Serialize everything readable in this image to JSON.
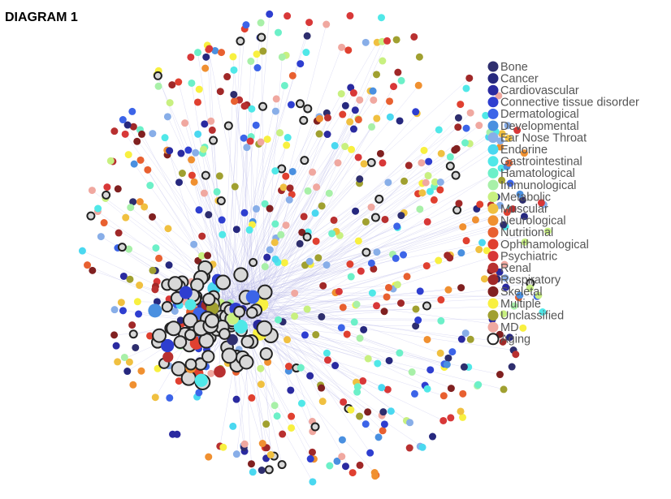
{
  "title": "DIAGRAM 1",
  "legend": [
    {
      "label": "Bone",
      "color": "#2e2e6e"
    },
    {
      "label": "Cancer",
      "color": "#26287e"
    },
    {
      "label": "Cardiovascular",
      "color": "#2a2aa0"
    },
    {
      "label": "Connective tissue disorder",
      "color": "#2e3ed0"
    },
    {
      "label": "Dermatological",
      "color": "#3c64e8"
    },
    {
      "label": "Developmental",
      "color": "#4a90e0"
    },
    {
      "label": "Ear Nose Throat",
      "color": "#88aee8"
    },
    {
      "label": "Endorine",
      "color": "#4ad8f0"
    },
    {
      "label": "Gastrointestinal",
      "color": "#50e8e8"
    },
    {
      "label": "Hamatological",
      "color": "#6cf0c8"
    },
    {
      "label": "Immunological",
      "color": "#a8f0a8"
    },
    {
      "label": "Metabolic",
      "color": "#c8f080"
    },
    {
      "label": "Muscular",
      "color": "#f0c040"
    },
    {
      "label": "Neurological",
      "color": "#f09030"
    },
    {
      "label": "Nutritional",
      "color": "#e86030"
    },
    {
      "label": "Ophthamological",
      "color": "#e04030"
    },
    {
      "label": "Psychiatric",
      "color": "#d83838"
    },
    {
      "label": "Renal",
      "color": "#b83030"
    },
    {
      "label": "Respiratory",
      "color": "#a02828"
    },
    {
      "label": "Skeletal",
      "color": "#802020"
    },
    {
      "label": "Multiple",
      "color": "#f8f040"
    },
    {
      "label": "Unclassified",
      "color": "#a0a030"
    },
    {
      "label": "MD",
      "color": "#f0a8a0"
    },
    {
      "label": "Aging",
      "color": "#ffffff",
      "outline": "#222222"
    }
  ]
}
